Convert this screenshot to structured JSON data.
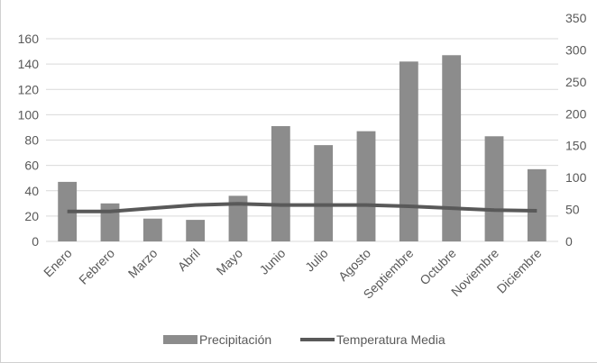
{
  "chart_data": {
    "type": "bar+line",
    "categories": [
      "Enero",
      "Febrero",
      "Marzo",
      "Abril",
      "Mayo",
      "Junio",
      "Julio",
      "Agosto",
      "Septiembre",
      "Octubre",
      "Noviembre",
      "Diciembre"
    ],
    "series": [
      {
        "name": "Precipitación",
        "type": "bar",
        "axis": "left",
        "color": "#8c8c8c",
        "values": [
          47,
          30,
          18,
          17,
          36,
          91,
          76,
          87,
          142,
          147,
          83,
          57
        ]
      },
      {
        "name": "Temperatura Media",
        "type": "line",
        "axis": "right",
        "color": "#595959",
        "values": [
          47,
          47,
          52,
          57,
          59,
          57,
          57,
          57,
          55,
          52,
          49,
          48
        ]
      }
    ],
    "left_axis": {
      "ylim": [
        0,
        160
      ],
      "ticks": [
        0,
        20,
        40,
        60,
        80,
        100,
        120,
        140,
        160
      ]
    },
    "right_axis": {
      "ylim": [
        0,
        350
      ],
      "ticks": [
        0,
        50,
        100,
        150,
        200,
        250,
        300,
        350
      ]
    },
    "grid": true,
    "legend_position": "bottom"
  }
}
